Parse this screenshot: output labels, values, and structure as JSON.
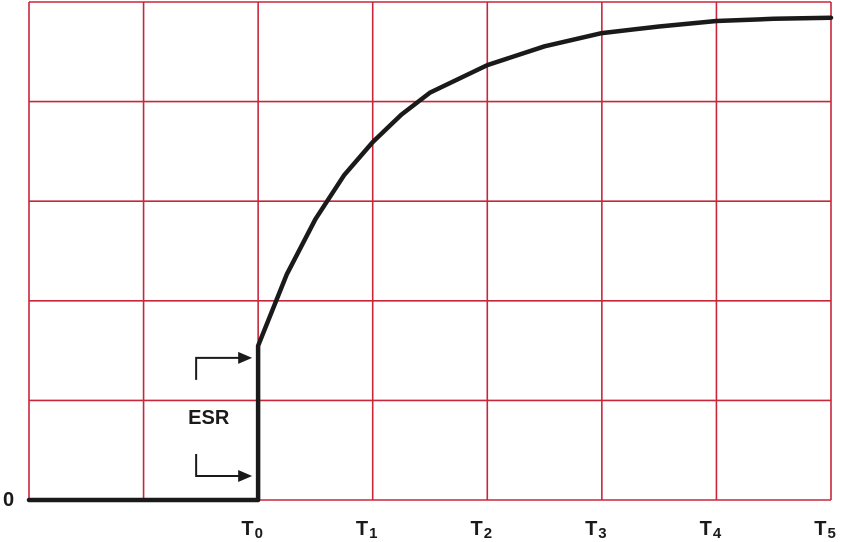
{
  "chart_data": {
    "type": "line",
    "title": "",
    "xlabel": "",
    "ylabel": "",
    "grid": true,
    "xlim": [
      -2,
      5
    ],
    "ylim": [
      0,
      4.5
    ],
    "x_ticks": [
      {
        "value": 0,
        "label": "T0",
        "main": "T",
        "sub": "0"
      },
      {
        "value": 1,
        "label": "T1",
        "main": "T",
        "sub": "1"
      },
      {
        "value": 2,
        "label": "T2",
        "main": "T",
        "sub": "2"
      },
      {
        "value": 3,
        "label": "T3",
        "main": "T",
        "sub": "3"
      },
      {
        "value": 4,
        "label": "T4",
        "main": "T",
        "sub": "4"
      },
      {
        "value": 5,
        "label": "T5",
        "main": "T",
        "sub": "5"
      }
    ],
    "y_zero_label": "0",
    "series": [
      {
        "x": [
          -2,
          -1,
          0,
          0,
          0.25,
          0.5,
          0.75,
          1,
          1.25,
          1.5,
          2,
          2.5,
          3,
          3.5,
          4,
          4.5,
          5
        ],
        "y": [
          0,
          0,
          0,
          1.4,
          2.05,
          2.55,
          2.95,
          3.25,
          3.5,
          3.7,
          3.95,
          4.12,
          4.24,
          4.3,
          4.35,
          4.37,
          4.38
        ]
      }
    ],
    "annotations": [
      {
        "text": "ESR",
        "x": 0,
        "from_y": 0,
        "to_y": 1.4
      }
    ],
    "colors": {
      "grid": "#c8273a",
      "line": "#1a1a1a",
      "text": "#1a1a1a"
    }
  }
}
